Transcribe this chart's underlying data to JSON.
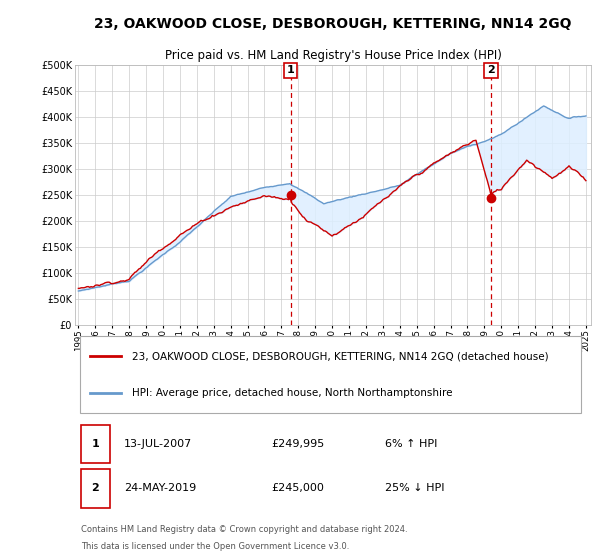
{
  "title": "23, OAKWOOD CLOSE, DESBOROUGH, KETTERING, NN14 2GQ",
  "subtitle": "Price paid vs. HM Land Registry's House Price Index (HPI)",
  "legend_line1": "23, OAKWOOD CLOSE, DESBOROUGH, KETTERING, NN14 2GQ (detached house)",
  "legend_line2": "HPI: Average price, detached house, North Northamptonshire",
  "annotation1_date": "13-JUL-2007",
  "annotation1_price": "£249,995",
  "annotation1_hpi": "6% ↑ HPI",
  "annotation2_date": "24-MAY-2019",
  "annotation2_price": "£245,000",
  "annotation2_hpi": "25% ↓ HPI",
  "footnote1": "Contains HM Land Registry data © Crown copyright and database right 2024.",
  "footnote2": "This data is licensed under the Open Government Licence v3.0.",
  "sale1_x": 2007.54,
  "sale1_y": 249995,
  "sale2_x": 2019.39,
  "sale2_y": 245000,
  "ylim": [
    0,
    500000
  ],
  "xlim_start": 1995,
  "xlim_end": 2025,
  "price_line_color": "#cc0000",
  "hpi_line_color": "#6699cc",
  "fill_color": "#ddeeff",
  "vline_color": "#cc0000",
  "sale_dot_color": "#cc0000",
  "grid_color": "#cccccc",
  "background_color": "#ffffff",
  "plot_bg_color": "#ffffff",
  "label_box_color": "#cc0000"
}
